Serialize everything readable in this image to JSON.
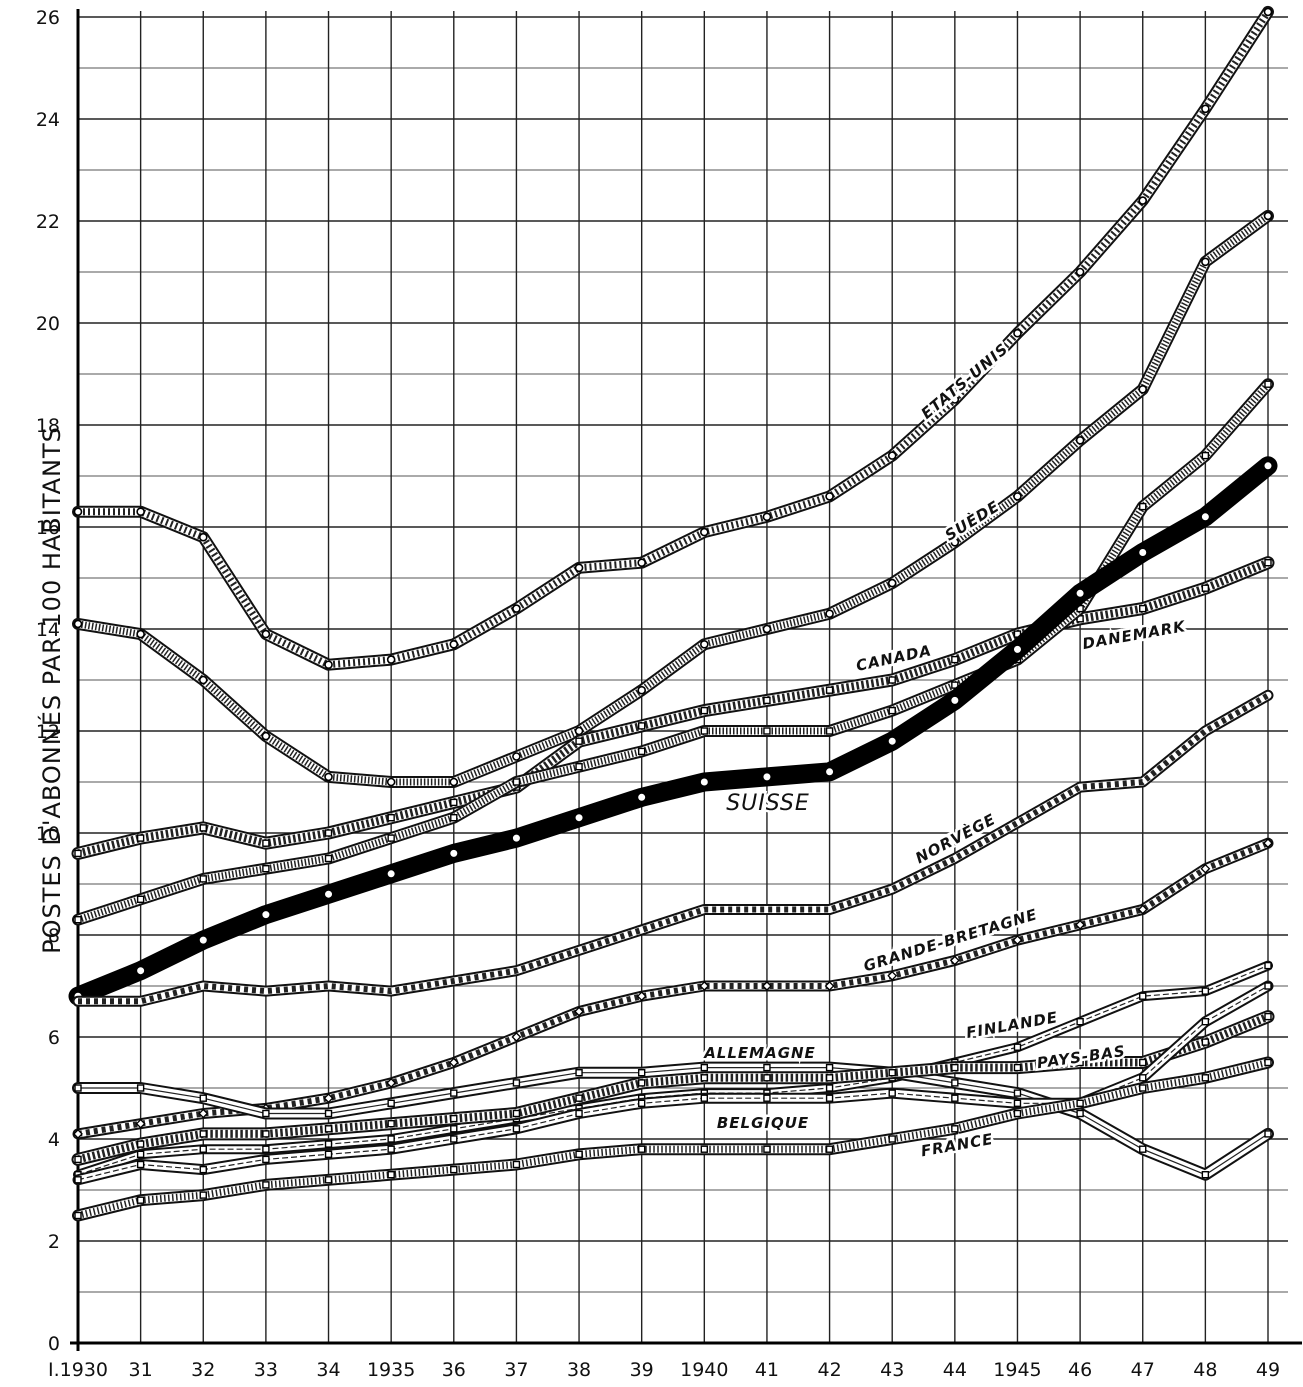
{
  "chart_data": {
    "type": "line",
    "title": "",
    "xlabel": "",
    "ylabel": "POSTES D'ABONNÉS PAR 100 HABITANTS",
    "ylim": [
      0,
      26
    ],
    "grid": true,
    "x_tick_labels": [
      "I.1930",
      "31",
      "32",
      "33",
      "34",
      "1935",
      "36",
      "37",
      "38",
      "39",
      "1940",
      "41",
      "42",
      "43",
      "44",
      "1945",
      "46",
      "47",
      "48",
      "49"
    ],
    "x": [
      1930,
      1931,
      1932,
      1933,
      1934,
      1935,
      1936,
      1937,
      1938,
      1939,
      1940,
      1941,
      1942,
      1943,
      1944,
      1945,
      1946,
      1947,
      1948,
      1949
    ],
    "y_ticks": [
      0,
      2,
      4,
      6,
      8,
      10,
      12,
      14,
      16,
      18,
      20,
      22,
      24,
      26
    ],
    "series": [
      {
        "name": "ETATS-UNIS",
        "values": [
          16.3,
          16.3,
          15.8,
          13.9,
          13.3,
          13.4,
          13.7,
          14.4,
          15.2,
          15.3,
          15.9,
          16.2,
          16.6,
          17.4,
          18.5,
          19.8,
          21.0,
          22.4,
          24.2,
          26.1
        ]
      },
      {
        "name": "SUÈDE",
        "values": [
          14.1,
          13.9,
          13.0,
          11.9,
          11.1,
          11.0,
          11.0,
          11.5,
          12.0,
          12.8,
          13.7,
          14.0,
          14.3,
          14.9,
          15.7,
          16.6,
          17.7,
          18.7,
          21.2,
          22.1
        ]
      },
      {
        "name": "CANADA",
        "values": [
          9.6,
          9.9,
          10.1,
          9.8,
          10.0,
          10.3,
          10.6,
          10.9,
          11.8,
          12.1,
          12.4,
          12.6,
          12.8,
          13.0,
          13.4,
          13.9,
          14.2,
          14.4,
          14.8,
          15.3
        ]
      },
      {
        "name": "DANEMARK",
        "values": [
          8.3,
          8.7,
          9.1,
          9.3,
          9.5,
          9.9,
          10.3,
          11.0,
          11.3,
          11.6,
          12.0,
          12.0,
          12.0,
          12.4,
          12.9,
          13.4,
          14.4,
          16.4,
          17.4,
          18.8
        ]
      },
      {
        "name": "SUISSE",
        "values": [
          6.8,
          7.3,
          7.9,
          8.4,
          8.8,
          9.2,
          9.6,
          9.9,
          10.3,
          10.7,
          11.0,
          11.1,
          11.2,
          11.8,
          12.6,
          13.6,
          14.7,
          15.5,
          16.2,
          17.2
        ]
      },
      {
        "name": "NORVÈGE",
        "values": [
          6.7,
          6.7,
          7.0,
          6.9,
          7.0,
          6.9,
          7.1,
          7.3,
          7.7,
          8.1,
          8.5,
          8.5,
          8.5,
          8.9,
          9.5,
          10.2,
          10.9,
          11.0,
          12.0,
          12.7
        ]
      },
      {
        "name": "GRANDE-BRETAGNE",
        "values": [
          4.1,
          4.3,
          4.5,
          4.6,
          4.8,
          5.1,
          5.5,
          6.0,
          6.5,
          6.8,
          7.0,
          7.0,
          7.0,
          7.2,
          7.5,
          7.9,
          8.2,
          8.5,
          9.3,
          9.8
        ]
      },
      {
        "name": "FINLANDE",
        "values": [
          3.3,
          3.7,
          3.8,
          3.8,
          3.9,
          4.0,
          4.2,
          4.4,
          4.6,
          4.8,
          4.9,
          4.9,
          5.0,
          5.2,
          5.5,
          5.8,
          6.3,
          6.8,
          6.9,
          7.4
        ]
      },
      {
        "name": "ALLEMAGNE",
        "values": [
          5.0,
          5.0,
          4.8,
          4.5,
          4.5,
          4.7,
          4.9,
          5.1,
          5.3,
          5.3,
          5.4,
          5.4,
          5.4,
          5.3,
          5.1,
          4.9,
          4.5,
          3.8,
          3.3,
          4.1
        ]
      },
      {
        "name": "PAYS-BAS",
        "values": [
          3.6,
          3.9,
          4.1,
          4.1,
          4.2,
          4.3,
          4.4,
          4.5,
          4.8,
          5.1,
          5.2,
          5.2,
          5.2,
          5.3,
          5.4,
          5.4,
          5.5,
          5.5,
          5.9,
          6.4
        ]
      },
      {
        "name": "BELGIQUE",
        "values": [
          3.2,
          3.5,
          3.4,
          3.6,
          3.7,
          3.8,
          4.0,
          4.2,
          4.5,
          4.7,
          4.8,
          4.8,
          4.8,
          4.9,
          4.8,
          4.7,
          4.7,
          5.2,
          6.3,
          7.0
        ]
      },
      {
        "name": "FRANCE",
        "values": [
          2.5,
          2.8,
          2.9,
          3.1,
          3.2,
          3.3,
          3.4,
          3.5,
          3.7,
          3.8,
          3.8,
          3.8,
          3.8,
          4.0,
          4.2,
          4.5,
          4.7,
          5.0,
          5.2,
          5.5
        ]
      }
    ]
  }
}
